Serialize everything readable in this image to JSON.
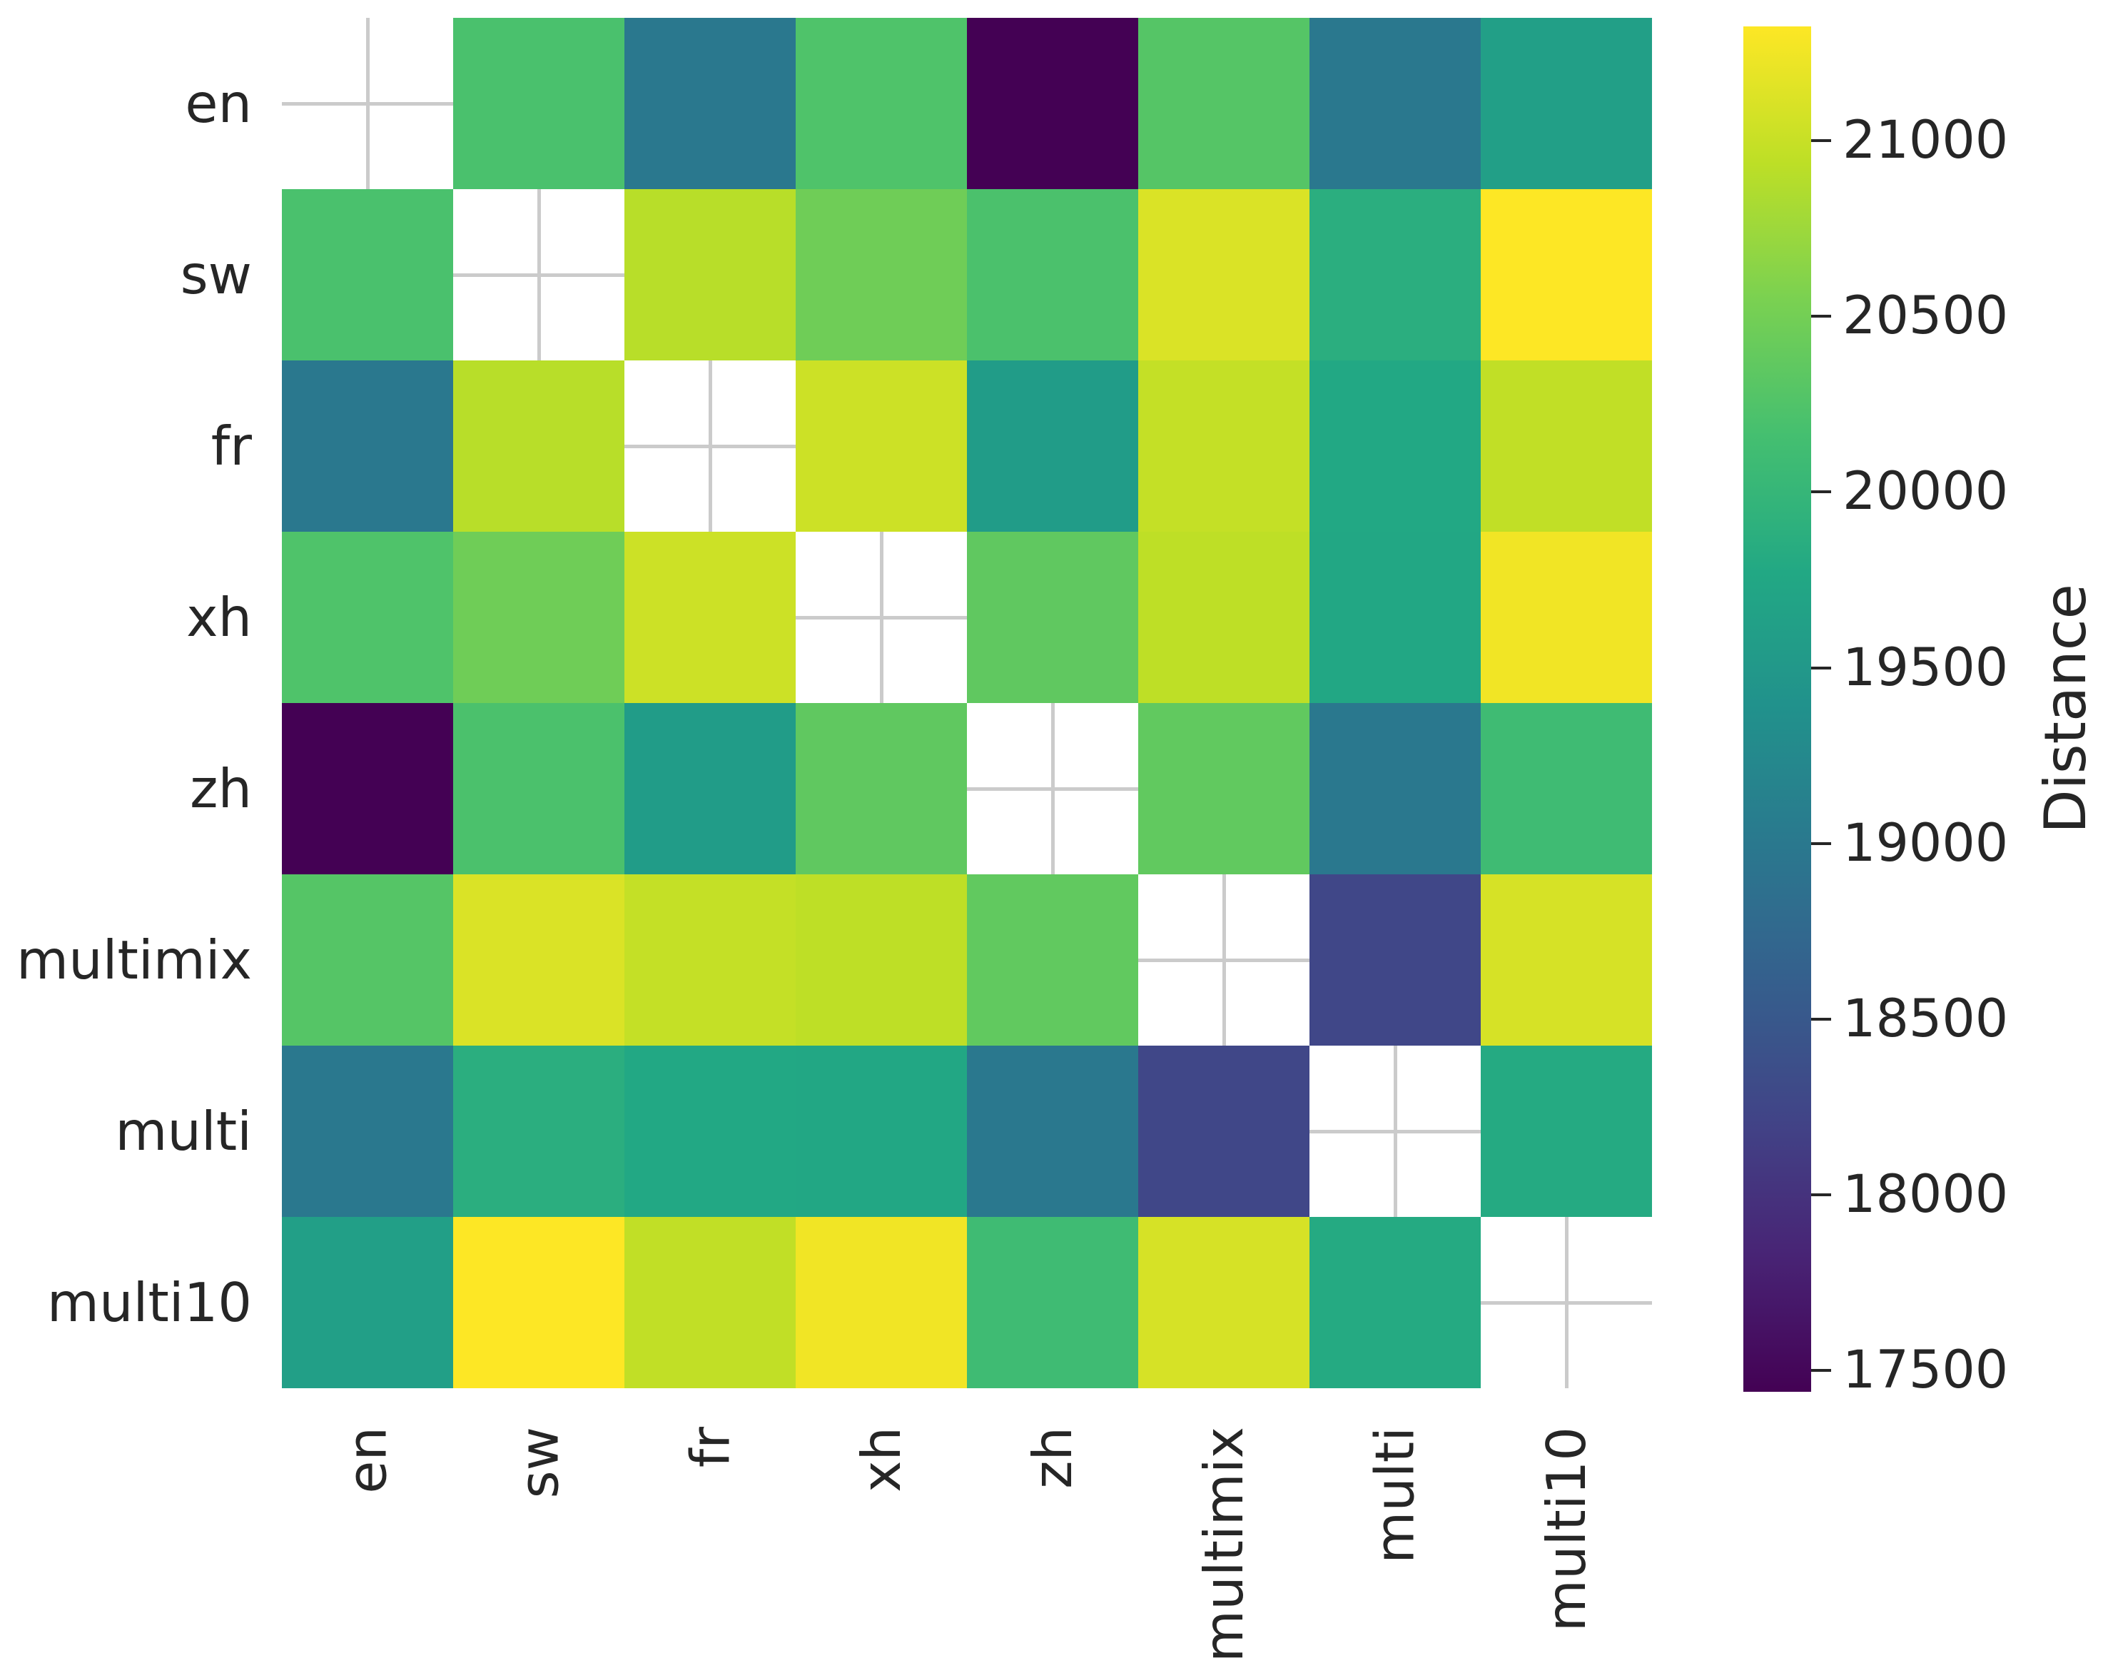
{
  "chart_data": {
    "type": "heatmap",
    "title": "",
    "xlabel": "",
    "ylabel": "",
    "categories": [
      "en",
      "sw",
      "fr",
      "xh",
      "zh",
      "multimix",
      "multi",
      "multi10"
    ],
    "matrix": [
      [
        null,
        20200,
        18990,
        20240,
        17440,
        20280,
        19000,
        19620
      ],
      [
        20200,
        null,
        20910,
        20470,
        20210,
        21110,
        19870,
        21325
      ],
      [
        18990,
        20910,
        null,
        21030,
        19560,
        20980,
        19770,
        20960
      ],
      [
        20240,
        20470,
        21030,
        null,
        20360,
        20940,
        19750,
        21250
      ],
      [
        17440,
        20210,
        19560,
        20360,
        null,
        20370,
        18990,
        20100
      ],
      [
        20280,
        21110,
        20980,
        20940,
        20370,
        null,
        18260,
        21090
      ],
      [
        19000,
        19870,
        19770,
        19750,
        18990,
        18260,
        null,
        19810
      ],
      [
        19620,
        21325,
        20960,
        21250,
        20100,
        21090,
        19810,
        null
      ]
    ],
    "diagonal": "blank",
    "colorbar": {
      "label": "Distance",
      "ticks": [
        21000,
        20500,
        20000,
        19500,
        19000,
        18500,
        18000,
        17500
      ],
      "vmin": 17440,
      "vmax": 21325,
      "position": "right"
    },
    "colormap": {
      "name": "viridis",
      "stops": [
        "#440154",
        "#482475",
        "#414487",
        "#355f8d",
        "#2a788e",
        "#21918c",
        "#22a884",
        "#44bf70",
        "#7ad151",
        "#bddf26",
        "#fde725"
      ]
    },
    "layout": {
      "grid": "visible-through-blank-diagonal-cells",
      "x_tick_rotation": 90,
      "legend_position": "right-colorbar"
    }
  },
  "colors": {
    "background": "#ffffff",
    "gridline": "#cbcbcb",
    "text": "#262626",
    "min_cell": "#440154",
    "max_cell": "#fde725"
  }
}
